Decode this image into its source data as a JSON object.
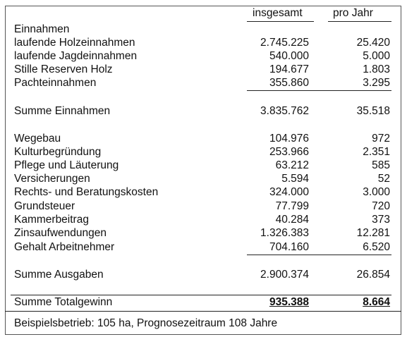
{
  "header": {
    "columns": [
      "insgesamt",
      "pro Jahr"
    ]
  },
  "table": {
    "rows": [
      [
        "Einnahmen"
      ],
      [
        "laufende Holzeinnahmen",
        "2.745.225",
        "25.420"
      ],
      [
        "laufende Jagdeinnahmen",
        "540.000",
        "5.000"
      ],
      [
        "Stille Reserven Holz",
        "194.677",
        "1.803"
      ],
      [
        "Pachteinnahmen",
        "355.860",
        "3.295"
      ],
      [
        "Summe Einnahmen",
        "3.835.762",
        "35.518"
      ],
      [
        "Wegebau",
        "104.976",
        "972"
      ],
      [
        "Kulturbegründung",
        "253.966",
        "2.351"
      ],
      [
        "Pflege und Läuterung",
        "63.212",
        "585"
      ],
      [
        "Versicherungen",
        "5.594",
        "52"
      ],
      [
        "Rechts- und Beratungskosten",
        "324.000",
        "3.000"
      ],
      [
        "Grundsteuer",
        "77.799",
        "720"
      ],
      [
        "Kammerbeitrag",
        "40.284",
        "373"
      ],
      [
        "Zinsaufwendungen",
        "1.326.383",
        "12.281"
      ],
      [
        "Gehalt Arbeitnehmer",
        "704.160",
        "6.520"
      ],
      [
        "Summe Ausgaben",
        "2.900.374",
        "26.854"
      ],
      [
        "Summe Totalgewinn",
        "935.388",
        "8.664"
      ]
    ]
  },
  "footnote": "Beispielsbetrieb: 105 ha, Prognosezeitraum 108 Jahre"
}
